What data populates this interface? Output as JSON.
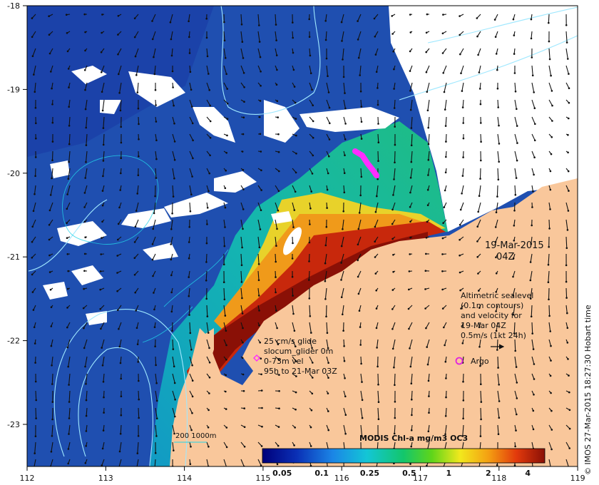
{
  "map": {
    "lon_ticks": [
      "112",
      "113",
      "114",
      "115",
      "116",
      "117",
      "118",
      "119"
    ],
    "lat_ticks": [
      "-18",
      "-19",
      "-20",
      "-21",
      "-22",
      "-23"
    ],
    "date_label": "19-Mar-2015",
    "time_label": "04Z",
    "sealevel_note": [
      "Altimetric sealevel",
      "(0.1m contours)",
      "and velocity for",
      "19-Mar 04Z",
      "0.5m/s (1kt 24h)"
    ],
    "glider_note": [
      "25 cm/s glide",
      "slocum_glider 0m",
      "0-73m vel",
      "95h to 21-Mar 03Z"
    ],
    "argo_label": "Argo",
    "depth_label": "200  1000m",
    "credit": "© IMOS 27-Mar-2015 18:27:30 Hobart time",
    "colorbar": {
      "title": "MODIS Chl-a mg/m3 OC3",
      "tick_labels": [
        "0.05",
        "0.1",
        "0.25",
        "0.5",
        "1",
        "2",
        "4"
      ]
    }
  },
  "colors": {
    "land": "#f9c79b",
    "ocean_deep": "#1f4fb0",
    "contour": "#9fe8ff",
    "glider": "#ff2dff",
    "argo": "#e022e0"
  }
}
